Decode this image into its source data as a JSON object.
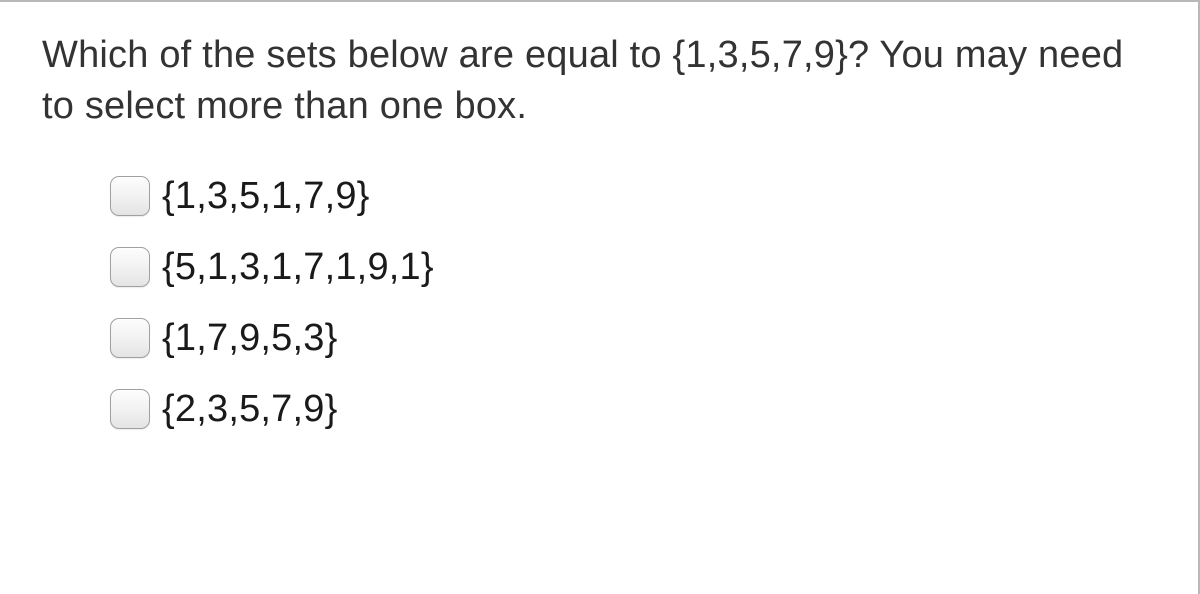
{
  "question": {
    "text": "Which of the sets below are equal to {1,3,5,7,9}? You may need to select more than one box."
  },
  "options": [
    {
      "label": "{1,3,5,1,7,9}",
      "checked": false
    },
    {
      "label": "{5,1,3,1,7,1,9,1}",
      "checked": false
    },
    {
      "label": "{1,7,9,5,3}",
      "checked": false
    },
    {
      "label": "{2,3,5,7,9}",
      "checked": false
    }
  ],
  "colors": {
    "text": "#333333",
    "option_text": "#1a1a1a",
    "border": "#b8b8b8",
    "background": "#ffffff"
  },
  "typography": {
    "question_fontsize": 38,
    "option_fontsize": 38,
    "font_family": "Verdana, Geneva, sans-serif"
  }
}
